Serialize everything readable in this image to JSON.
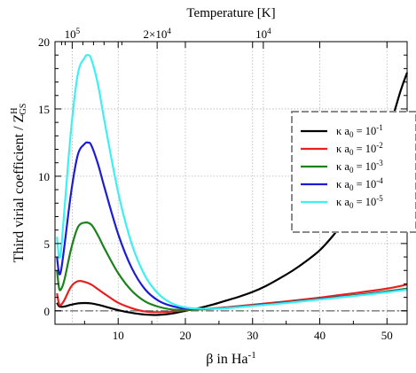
{
  "chart_data": {
    "type": "line",
    "xlabel": "β in Ha",
    "xlabel_sup": "-1",
    "ylabel": "Third virial coefficient / Z",
    "ylabel_sup": "H",
    "ylabel_sub": "GS",
    "top_axis_title": "Temperature [K]",
    "xlim": [
      0.6,
      53
    ],
    "ylim": [
      -1,
      20
    ],
    "x_ticks": [
      {
        "value": 10,
        "label": "10"
      },
      {
        "value": 20,
        "label": "20"
      },
      {
        "value": 30,
        "label": "30"
      },
      {
        "value": 40,
        "label": "40"
      },
      {
        "value": 50,
        "label": "50"
      }
    ],
    "y_ticks": [
      {
        "value": 0,
        "label": "0"
      },
      {
        "value": 5,
        "label": "5"
      },
      {
        "value": 10,
        "label": "10"
      },
      {
        "value": 15,
        "label": "15"
      },
      {
        "value": 20,
        "label": "20"
      }
    ],
    "top_ticks": [
      {
        "beta": 3.16,
        "base": "10",
        "sup": "5"
      },
      {
        "beta": 15.8,
        "base": "2×10",
        "sup": "4"
      },
      {
        "beta": 31.6,
        "base": "10",
        "sup": "4"
      }
    ],
    "grid": true,
    "legend_position": "right",
    "legend_label_prefix": "κ a",
    "legend_label_sub": "0",
    "legend_label_mid": " = 10",
    "series": [
      {
        "name_sup": "-1",
        "color": "#000000",
        "x": [
          0.9,
          1.2,
          1.6,
          2,
          3,
          4,
          5,
          6,
          7,
          8,
          10,
          12,
          14,
          16,
          18,
          20,
          22,
          24,
          26,
          28,
          30,
          32,
          34,
          36,
          38,
          40,
          42,
          44,
          46,
          48,
          50,
          52,
          53
        ],
        "y": [
          0.6,
          0.35,
          0.3,
          0.32,
          0.45,
          0.55,
          0.58,
          0.55,
          0.45,
          0.32,
          0.05,
          -0.15,
          -0.28,
          -0.3,
          -0.2,
          0.0,
          0.2,
          0.45,
          0.75,
          1.05,
          1.4,
          1.85,
          2.4,
          3.0,
          3.7,
          4.5,
          5.6,
          6.9,
          8.5,
          10.5,
          13.0,
          16.3,
          17.7
        ]
      },
      {
        "name_sup": "-2",
        "color": "#e81f1f",
        "x": [
          0.9,
          1.2,
          1.5,
          2,
          3,
          4,
          5,
          6,
          7,
          8,
          10,
          12,
          14,
          16,
          18,
          20,
          22,
          24,
          26,
          30,
          35,
          40,
          45,
          50,
          53
        ],
        "y": [
          1.3,
          0.5,
          0.45,
          0.8,
          1.8,
          2.2,
          2.15,
          1.95,
          1.6,
          1.25,
          0.6,
          0.2,
          -0.05,
          -0.1,
          -0.05,
          0.05,
          0.12,
          0.18,
          0.25,
          0.45,
          0.7,
          0.98,
          1.3,
          1.65,
          1.95
        ]
      },
      {
        "name_sup": "-3",
        "color": "#1c821c",
        "x": [
          0.9,
          1.2,
          1.5,
          2,
          3,
          4,
          5,
          6,
          7,
          8,
          10,
          12,
          14,
          16,
          18,
          20,
          22,
          24,
          26,
          30,
          35,
          40,
          45,
          50,
          53
        ],
        "y": [
          3.0,
          1.7,
          1.6,
          2.3,
          4.6,
          6.2,
          6.55,
          6.4,
          5.6,
          4.6,
          2.8,
          1.5,
          0.7,
          0.3,
          0.1,
          0.08,
          0.1,
          0.15,
          0.22,
          0.4,
          0.62,
          0.88,
          1.15,
          1.45,
          1.65
        ]
      },
      {
        "name_sup": "-4",
        "color": "#1c1cd6",
        "x": [
          0.9,
          1.2,
          1.5,
          2,
          3,
          4,
          5,
          5.5,
          6,
          7,
          8,
          10,
          12,
          14,
          16,
          18,
          20,
          22,
          24,
          26,
          30,
          35,
          40,
          45,
          50,
          53
        ],
        "y": [
          4.0,
          2.8,
          3.0,
          4.8,
          8.8,
          11.6,
          12.4,
          12.5,
          12.3,
          10.9,
          9.1,
          5.7,
          3.2,
          1.6,
          0.75,
          0.35,
          0.18,
          0.14,
          0.15,
          0.2,
          0.38,
          0.6,
          0.86,
          1.12,
          1.4,
          1.6
        ]
      },
      {
        "name_sup": "-5",
        "color": "#3ff0f0",
        "x": [
          0.9,
          1.2,
          1.5,
          2,
          3,
          4,
          5,
          5.5,
          6,
          7,
          8,
          10,
          12,
          14,
          16,
          18,
          20,
          22,
          24,
          26,
          30,
          35,
          40,
          45,
          50,
          53
        ],
        "y": [
          5.5,
          4.0,
          4.5,
          7.5,
          13.5,
          17.6,
          18.8,
          19.0,
          18.7,
          16.8,
          14.0,
          8.8,
          5.0,
          2.6,
          1.25,
          0.55,
          0.25,
          0.16,
          0.15,
          0.19,
          0.36,
          0.58,
          0.84,
          1.1,
          1.38,
          1.58
        ]
      }
    ]
  }
}
